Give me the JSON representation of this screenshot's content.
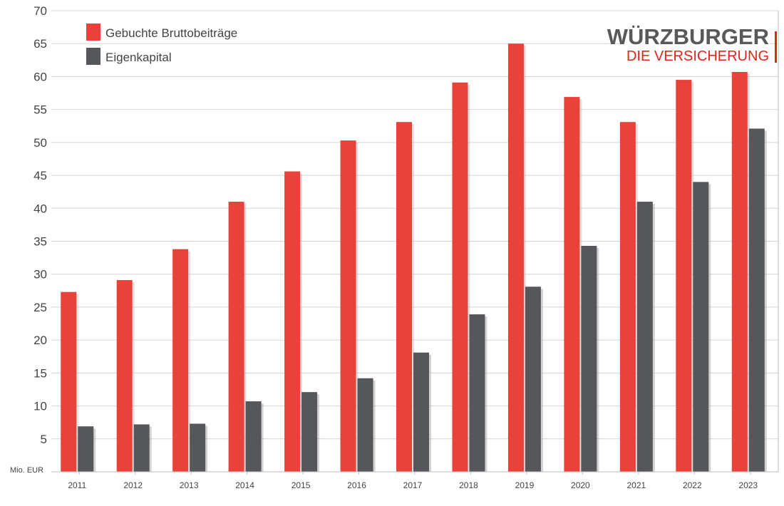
{
  "brand": {
    "name": "WÜRZBURGER",
    "tagline": "DIE VERSICHERUNG",
    "name_color": "#58595b",
    "accent_color": "#e2231a"
  },
  "chart_data": {
    "type": "bar",
    "unit_label": "Mio. EUR",
    "categories": [
      "2011",
      "2012",
      "2013",
      "2014",
      "2015",
      "2016",
      "2017",
      "2018",
      "2019",
      "2020",
      "2021",
      "2022",
      "2023"
    ],
    "series": [
      {
        "name": "Gebuchte Bruttobeiträge",
        "color": "#e8423a",
        "values": [
          27.3,
          29.1,
          33.8,
          41.0,
          45.6,
          50.3,
          53.1,
          59.1,
          65.0,
          56.9,
          53.1,
          59.5,
          60.7
        ]
      },
      {
        "name": "Eigenkapital",
        "color": "#55575a",
        "values": [
          6.9,
          7.2,
          7.3,
          10.7,
          12.1,
          14.2,
          18.1,
          23.9,
          28.1,
          34.3,
          41.0,
          44.0,
          52.1
        ]
      }
    ],
    "ylim": [
      0,
      70
    ],
    "yticks": [
      5,
      10,
      15,
      20,
      25,
      30,
      35,
      40,
      45,
      50,
      55,
      60,
      65,
      70
    ],
    "grid": true,
    "legend_position": "top-left"
  }
}
